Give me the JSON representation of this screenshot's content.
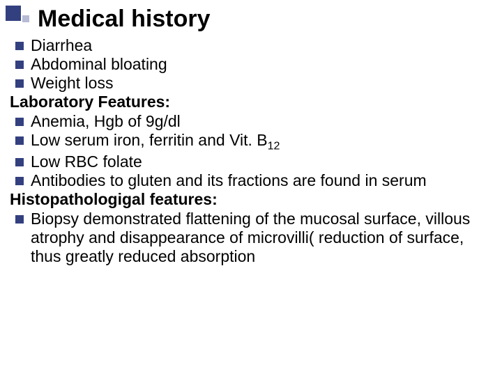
{
  "slide": {
    "title": "Medical history",
    "text_color": "#000000",
    "bullet_color": "#33407f",
    "deco_dark": "#33407f",
    "deco_light": "#b6bbd6",
    "line_color": "#c8cbe0",
    "background": "#ffffff",
    "title_fontsize": 34,
    "body_fontsize": 23,
    "items": [
      {
        "type": "bullet",
        "text": "Diarrhea"
      },
      {
        "type": "bullet",
        "text": "Abdominal bloating"
      },
      {
        "type": "bullet",
        "text": "Weight loss"
      },
      {
        "type": "heading",
        "text": "Laboratory Features:"
      },
      {
        "type": "bullet",
        "text": "Anemia, Hgb of 9g/dl"
      },
      {
        "type": "bullet",
        "text": "Low serum iron, ferritin and Vit. B",
        "sub": "12"
      },
      {
        "type": "bullet",
        "text": "Low RBC folate"
      },
      {
        "type": "bullet",
        "text": "Antibodies to gluten and its fractions are found in serum"
      },
      {
        "type": "heading",
        "text": "Histopathologigal features:"
      },
      {
        "type": "bullet",
        "text": "Biopsy demonstrated flattening of the mucosal surface, villous atrophy and disappearance of microvilli( reduction of surface, thus greatly reduced absorption"
      }
    ]
  }
}
